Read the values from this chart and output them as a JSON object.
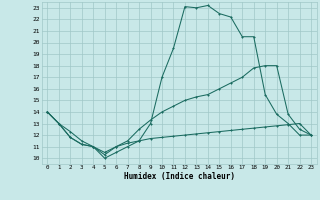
{
  "xlabel": "Humidex (Indice chaleur)",
  "xlim": [
    -0.5,
    23.5
  ],
  "ylim": [
    9.5,
    23.5
  ],
  "yticks": [
    10,
    11,
    12,
    13,
    14,
    15,
    16,
    17,
    18,
    19,
    20,
    21,
    22,
    23
  ],
  "xticks": [
    0,
    1,
    2,
    3,
    4,
    5,
    6,
    7,
    8,
    9,
    10,
    11,
    12,
    13,
    14,
    15,
    16,
    17,
    18,
    19,
    20,
    21,
    22,
    23
  ],
  "background_color": "#c8e8e8",
  "grid_color": "#a0c8c8",
  "line_color": "#1a6b60",
  "line1_x": [
    0,
    1,
    2,
    3,
    4,
    5,
    6,
    7,
    8,
    9,
    10,
    11,
    12,
    13,
    14,
    15,
    16,
    17,
    18,
    19,
    20,
    21,
    22,
    23
  ],
  "line1_y": [
    14,
    13,
    11.8,
    11.2,
    11.0,
    10.0,
    10.5,
    11.0,
    11.5,
    13.0,
    17.0,
    19.5,
    23.1,
    23.0,
    23.2,
    22.5,
    22.2,
    20.5,
    20.5,
    15.5,
    13.8,
    13.0,
    12.0,
    12.0
  ],
  "line2_x": [
    0,
    1,
    2,
    3,
    4,
    5,
    6,
    7,
    8,
    9,
    10,
    11,
    12,
    13,
    14,
    15,
    16,
    17,
    18,
    19,
    20,
    21,
    22,
    23
  ],
  "line2_y": [
    14,
    13,
    11.8,
    11.2,
    11.0,
    10.3,
    11.0,
    11.5,
    12.5,
    13.3,
    14.0,
    14.5,
    15.0,
    15.3,
    15.5,
    16.0,
    16.5,
    17.0,
    17.8,
    18.0,
    18.0,
    13.8,
    12.5,
    12.0
  ],
  "line3_x": [
    0,
    1,
    2,
    3,
    4,
    5,
    6,
    7,
    8,
    9,
    10,
    11,
    12,
    13,
    14,
    15,
    16,
    17,
    18,
    19,
    20,
    21,
    22,
    23
  ],
  "line3_y": [
    14,
    13,
    12.3,
    11.5,
    11.0,
    10.5,
    11.0,
    11.3,
    11.5,
    11.7,
    11.8,
    11.9,
    12.0,
    12.1,
    12.2,
    12.3,
    12.4,
    12.5,
    12.6,
    12.7,
    12.8,
    12.9,
    13.0,
    12.0
  ]
}
